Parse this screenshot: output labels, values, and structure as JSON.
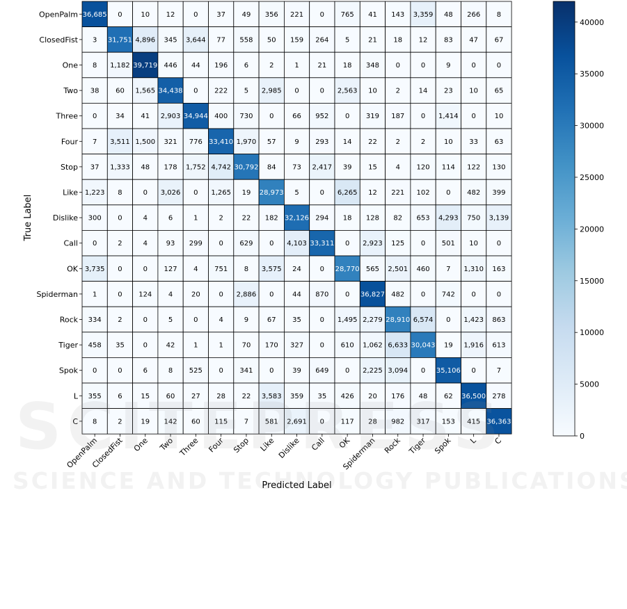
{
  "chart_data": {
    "type": "heatmap",
    "xlabel": "Predicted Label",
    "ylabel": "True Label",
    "labels": [
      "OpenPalm",
      "ClosedFist",
      "One",
      "Two",
      "Three",
      "Four",
      "Stop",
      "Like",
      "Dislike",
      "Call",
      "OK",
      "Spiderman",
      "Rock",
      "Tiger",
      "Spok",
      "L",
      "C"
    ],
    "matrix": [
      [
        36685,
        0,
        10,
        12,
        0,
        37,
        49,
        356,
        221,
        0,
        765,
        41,
        143,
        3359,
        48,
        266,
        8
      ],
      [
        3,
        31751,
        4896,
        345,
        3644,
        77,
        558,
        50,
        159,
        264,
        5,
        21,
        18,
        12,
        83,
        47,
        67
      ],
      [
        8,
        1182,
        39719,
        446,
        44,
        196,
        6,
        2,
        1,
        21,
        18,
        348,
        0,
        0,
        9,
        0,
        0
      ],
      [
        38,
        60,
        1565,
        34438,
        0,
        222,
        5,
        2985,
        0,
        0,
        2563,
        10,
        2,
        14,
        23,
        10,
        65
      ],
      [
        0,
        34,
        41,
        2903,
        34944,
        400,
        730,
        0,
        66,
        952,
        0,
        319,
        187,
        0,
        1414,
        0,
        10
      ],
      [
        7,
        3511,
        1500,
        321,
        776,
        33410,
        1970,
        57,
        9,
        293,
        14,
        22,
        2,
        2,
        10,
        33,
        63
      ],
      [
        37,
        1333,
        48,
        178,
        1752,
        4742,
        30792,
        84,
        73,
        2417,
        39,
        15,
        4,
        120,
        114,
        122,
        130
      ],
      [
        1223,
        8,
        0,
        3026,
        0,
        1265,
        19,
        28973,
        5,
        0,
        6265,
        12,
        221,
        102,
        0,
        482,
        399
      ],
      [
        300,
        0,
        4,
        6,
        1,
        2,
        22,
        182,
        32126,
        294,
        18,
        128,
        82,
        653,
        4293,
        750,
        3139
      ],
      [
        0,
        2,
        4,
        93,
        299,
        0,
        629,
        0,
        4103,
        33311,
        0,
        2923,
        125,
        0,
        501,
        10,
        0
      ],
      [
        3735,
        0,
        0,
        127,
        4,
        751,
        8,
        3575,
        24,
        0,
        28770,
        565,
        2501,
        460,
        7,
        1310,
        163
      ],
      [
        1,
        0,
        124,
        4,
        20,
        0,
        2886,
        0,
        44,
        870,
        0,
        36827,
        482,
        0,
        742,
        0,
        0
      ],
      [
        334,
        2,
        0,
        5,
        0,
        4,
        9,
        67,
        35,
        0,
        1495,
        2279,
        28910,
        6574,
        0,
        1423,
        863
      ],
      [
        458,
        35,
        0,
        42,
        1,
        1,
        70,
        170,
        327,
        0,
        610,
        1062,
        6633,
        30043,
        19,
        1916,
        613
      ],
      [
        0,
        0,
        6,
        8,
        525,
        0,
        341,
        0,
        39,
        649,
        0,
        2225,
        3094,
        0,
        35106,
        0,
        7
      ],
      [
        355,
        6,
        15,
        60,
        27,
        28,
        22,
        3583,
        359,
        35,
        426,
        20,
        176,
        48,
        62,
        36500,
        278
      ],
      [
        8,
        2,
        19,
        142,
        60,
        115,
        7,
        581,
        2691,
        0,
        117,
        28,
        982,
        317,
        153,
        415,
        36363
      ]
    ],
    "colorbar": {
      "min": 0,
      "max": 42000,
      "ticks": [
        0,
        5000,
        10000,
        15000,
        20000,
        25000,
        30000,
        35000,
        40000
      ],
      "colormap": "Blues"
    }
  },
  "watermark": {
    "line1": "SCITEPRESS",
    "line2": "SCIENCE AND TECHNOLOGY PUBLICATIONS"
  }
}
